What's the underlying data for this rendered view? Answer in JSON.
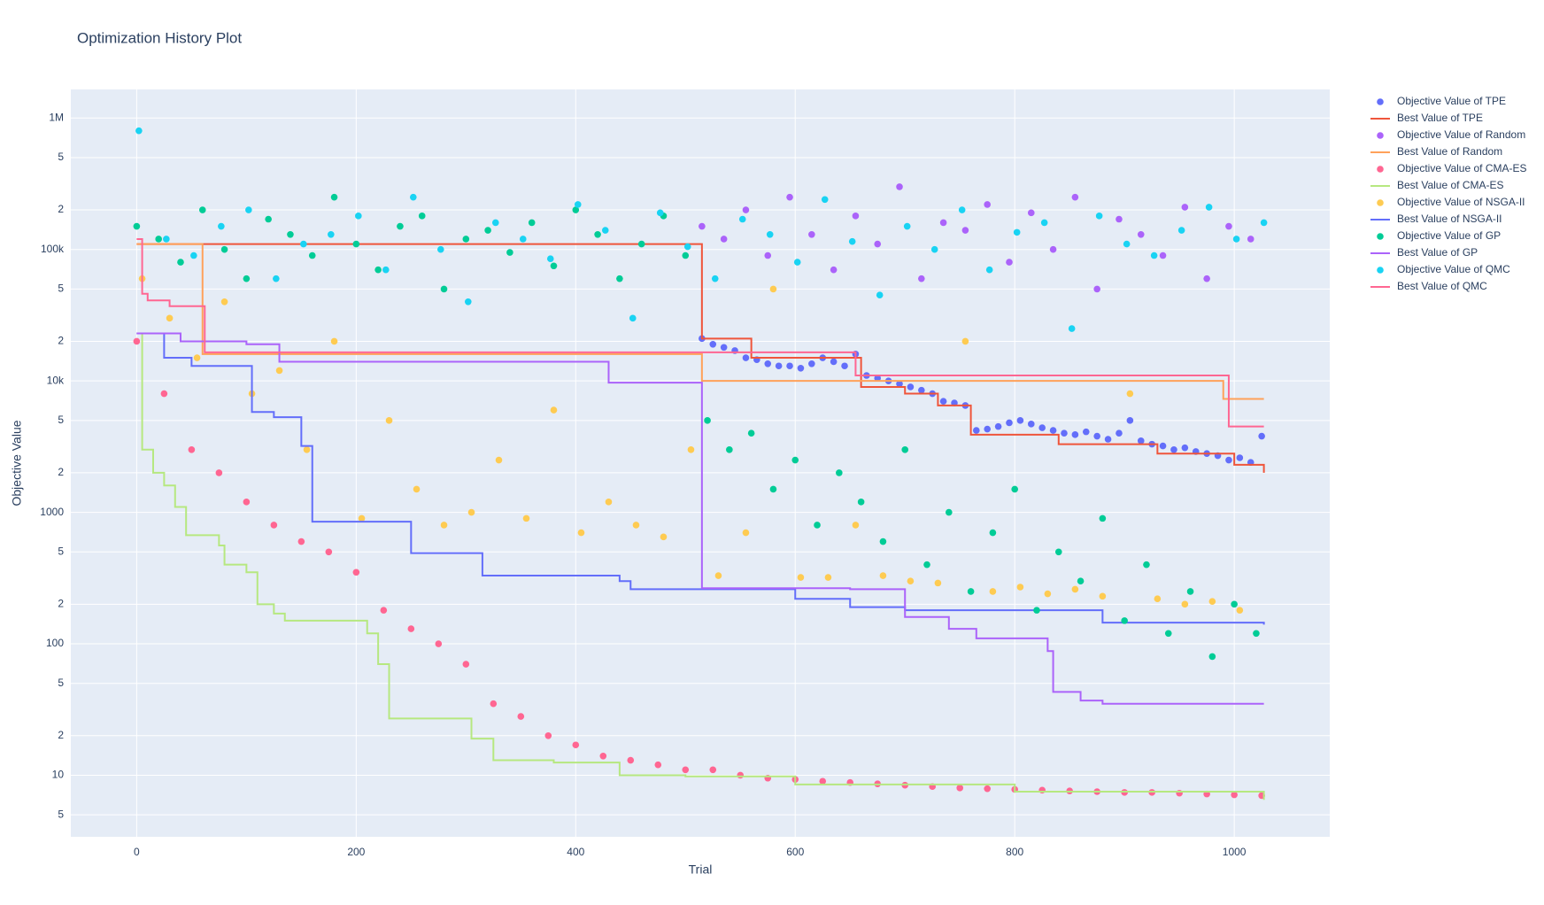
{
  "chart_data": {
    "type": "scatter",
    "title": "Optimization History Plot",
    "xlabel": "Trial",
    "ylabel": "Objective Value",
    "xlim": [
      -60,
      1087
    ],
    "ylim": [
      3.4,
      1650000
    ],
    "ylog": true,
    "grid": true,
    "legend": "right",
    "plot_background": "#e5ecf6",
    "xticks": [
      0,
      200,
      400,
      600,
      800,
      1000
    ],
    "yticks": [
      5,
      10,
      {
        "value": 20,
        "label": "2"
      },
      {
        "value": 50,
        "label": "5"
      },
      100,
      {
        "value": 200,
        "label": "2"
      },
      {
        "value": 500,
        "label": "5"
      },
      1000,
      {
        "value": 2000,
        "label": "2"
      },
      {
        "value": 5000,
        "label": "5"
      },
      {
        "value": 10000,
        "label": "10k"
      },
      {
        "value": 20000,
        "label": "2"
      },
      {
        "value": 50000,
        "label": "5"
      },
      {
        "value": 100000,
        "label": "100k"
      },
      {
        "value": 200000,
        "label": "2"
      },
      {
        "value": 500000,
        "label": "5"
      },
      {
        "value": 1000000,
        "label": "1M"
      }
    ],
    "series": [
      {
        "name": "Objective Value of TPE",
        "color": "#636efa",
        "mode": "markers",
        "x": [
          515,
          525,
          535,
          545,
          555,
          565,
          575,
          585,
          595,
          605,
          615,
          625,
          635,
          645,
          655,
          665,
          675,
          685,
          695,
          705,
          715,
          725,
          735,
          745,
          755,
          765,
          775,
          785,
          795,
          805,
          815,
          825,
          835,
          845,
          855,
          865,
          875,
          885,
          895,
          905,
          915,
          925,
          935,
          945,
          955,
          965,
          975,
          985,
          995,
          1005,
          1015,
          1025
        ],
        "values": [
          21000,
          19000,
          18000,
          17000,
          15000,
          14500,
          13500,
          13000,
          13000,
          12500,
          13500,
          15000,
          14000,
          13000,
          16000,
          11000,
          10500,
          10000,
          9500,
          9000,
          8500,
          8000,
          7000,
          6800,
          6500,
          4200,
          4300,
          4500,
          4800,
          5000,
          4700,
          4400,
          4200,
          4000,
          3900,
          4100,
          3800,
          3600,
          4000,
          5000,
          3500,
          3300,
          3200,
          3000,
          3100,
          2900,
          2800,
          2700,
          2500,
          2600,
          2400,
          3800
        ]
      },
      {
        "name": "Best Value of TPE",
        "color": "#ef553b",
        "mode": "lines",
        "line_shape": "hv",
        "x": [
          0,
          515,
          560,
          660,
          700,
          730,
          760,
          840,
          930,
          1000,
          1027
        ],
        "values": [
          110000,
          21000,
          15000,
          9000,
          8000,
          6500,
          3900,
          3300,
          2800,
          2300,
          2000
        ]
      },
      {
        "name": "Objective Value of Random",
        "color": "#ab63fa",
        "mode": "markers",
        "x": [
          515,
          535,
          555,
          575,
          595,
          615,
          635,
          655,
          675,
          695,
          715,
          735,
          755,
          775,
          795,
          815,
          835,
          855,
          875,
          895,
          915,
          935,
          955,
          975,
          995,
          1015
        ],
        "values": [
          150000,
          120000,
          200000,
          90000,
          250000,
          130000,
          70000,
          180000,
          110000,
          300000,
          60000,
          160000,
          140000,
          220000,
          80000,
          190000,
          100000,
          250000,
          50000,
          170000,
          130000,
          90000,
          210000,
          60000,
          150000,
          120000
        ]
      },
      {
        "name": "Best Value of Random",
        "color": "#ffa15a",
        "mode": "lines",
        "line_shape": "hv",
        "x": [
          0,
          60,
          515,
          990,
          1027
        ],
        "values": [
          110000,
          16000,
          10000,
          7300,
          7300
        ]
      },
      {
        "name": "Objective Value of CMA-ES",
        "color": "#ff6692",
        "mode": "markers",
        "x": [
          0,
          25,
          50,
          75,
          100,
          125,
          150,
          175,
          200,
          225,
          250,
          275,
          300,
          325,
          350,
          375,
          400,
          425,
          450,
          475,
          500,
          525,
          550,
          575,
          600,
          625,
          650,
          675,
          700,
          725,
          750,
          775,
          800,
          825,
          850,
          875,
          900,
          925,
          950,
          975,
          1000,
          1025
        ],
        "values": [
          20000,
          8000,
          3000,
          2000,
          1200,
          800,
          600,
          500,
          350,
          180,
          130,
          100,
          70,
          35,
          28,
          20,
          17,
          14,
          13,
          12,
          11,
          11,
          10,
          9.5,
          9.3,
          9,
          8.8,
          8.6,
          8.4,
          8.2,
          8,
          7.9,
          7.8,
          7.7,
          7.6,
          7.5,
          7.4,
          7.4,
          7.3,
          7.2,
          7.1,
          7
        ]
      },
      {
        "name": "Best Value of CMA-ES",
        "color": "#b6e880",
        "mode": "lines",
        "line_shape": "hv",
        "x": [
          0,
          5,
          15,
          25,
          35,
          45,
          75,
          80,
          100,
          110,
          125,
          135,
          200,
          210,
          220,
          230,
          305,
          325,
          380,
          440,
          500,
          600,
          800,
          1027
        ],
        "values": [
          23000,
          3000,
          2000,
          1600,
          1100,
          670,
          560,
          400,
          350,
          200,
          170,
          150,
          150,
          120,
          70,
          27,
          19,
          13,
          12.5,
          10,
          9.8,
          8.5,
          7.5,
          6.5
        ]
      },
      {
        "name": "Objective Value of NSGA-II",
        "color": "#fecb52",
        "mode": "markers",
        "x": [
          5,
          30,
          55,
          80,
          105,
          130,
          155,
          180,
          205,
          230,
          255,
          280,
          305,
          330,
          355,
          380,
          405,
          430,
          455,
          480,
          505,
          530,
          555,
          580,
          605,
          630,
          655,
          680,
          705,
          730,
          755,
          780,
          805,
          830,
          855,
          880,
          905,
          930,
          955,
          980,
          1005
        ],
        "values": [
          60000,
          30000,
          15000,
          40000,
          8000,
          12000,
          3000,
          20000,
          900,
          5000,
          1500,
          800,
          1000,
          2500,
          900,
          6000,
          700,
          1200,
          800,
          650,
          3000,
          330,
          700,
          50000,
          320,
          320,
          800,
          330,
          300,
          290,
          20000,
          250,
          270,
          240,
          260,
          230,
          8000,
          220,
          200,
          210,
          180
        ]
      },
      {
        "name": "Best Value of NSGA-II",
        "color": "#636efa",
        "mode": "lines",
        "line_shape": "hv",
        "x": [
          0,
          25,
          50,
          105,
          125,
          150,
          160,
          250,
          315,
          440,
          450,
          600,
          650,
          700,
          880,
          1027
        ],
        "values": [
          23000,
          15000,
          13000,
          5800,
          5300,
          3200,
          850,
          490,
          330,
          300,
          260,
          220,
          190,
          180,
          145,
          140
        ]
      },
      {
        "name": "Objective Value of GP",
        "color": "#00cc96",
        "mode": "markers",
        "x": [
          0,
          20,
          40,
          60,
          80,
          100,
          120,
          140,
          160,
          180,
          200,
          220,
          240,
          260,
          280,
          300,
          320,
          340,
          360,
          380,
          400,
          420,
          440,
          460,
          480,
          500,
          520,
          540,
          560,
          580,
          600,
          620,
          640,
          660,
          680,
          700,
          720,
          740,
          760,
          780,
          800,
          820,
          840,
          860,
          880,
          900,
          920,
          940,
          960,
          980,
          1000,
          1020
        ],
        "values": [
          150000,
          120000,
          80000,
          200000,
          100000,
          60000,
          170000,
          130000,
          90000,
          250000,
          110000,
          70000,
          150000,
          180000,
          50000,
          120000,
          140000,
          95000,
          160000,
          75000,
          200000,
          130000,
          60000,
          110000,
          180000,
          90000,
          5000,
          3000,
          4000,
          1500,
          2500,
          800,
          2000,
          1200,
          600,
          3000,
          400,
          1000,
          250,
          700,
          1500,
          180,
          500,
          300,
          900,
          150,
          400,
          120,
          250,
          80,
          200,
          120
        ]
      },
      {
        "name": "Best Value of GP",
        "color": "#ab63fa",
        "mode": "lines",
        "line_shape": "hv",
        "x": [
          0,
          40,
          100,
          130,
          430,
          515,
          650,
          700,
          740,
          765,
          830,
          835,
          860,
          880,
          1027
        ],
        "values": [
          23000,
          20000,
          19000,
          14000,
          9700,
          265,
          260,
          160,
          130,
          110,
          88,
          43,
          37,
          35,
          35
        ]
      },
      {
        "name": "Objective Value of QMC",
        "color": "#19d3f3",
        "mode": "markers",
        "x": [
          2,
          27,
          52,
          77,
          102,
          127,
          152,
          177,
          202,
          227,
          252,
          277,
          302,
          327,
          352,
          377,
          402,
          427,
          452,
          477,
          502,
          527,
          552,
          577,
          602,
          627,
          652,
          677,
          702,
          727,
          752,
          777,
          802,
          827,
          852,
          877,
          902,
          927,
          952,
          977,
          1002,
          1027
        ],
        "values": [
          800000,
          120000,
          90000,
          150000,
          200000,
          60000,
          110000,
          130000,
          180000,
          70000,
          250000,
          100000,
          40000,
          160000,
          120000,
          85000,
          220000,
          140000,
          30000,
          190000,
          105000,
          60000,
          170000,
          130000,
          80000,
          240000,
          115000,
          45000,
          150000,
          100000,
          200000,
          70000,
          135000,
          160000,
          25000,
          180000,
          110000,
          90000,
          140000,
          210000,
          120000,
          160000
        ]
      },
      {
        "name": "Best Value of QMC",
        "color": "#ff6692",
        "mode": "lines",
        "line_shape": "hv",
        "x": [
          0,
          5,
          10,
          30,
          62,
          655,
          995,
          1027
        ],
        "values": [
          120000,
          46000,
          41000,
          37000,
          16500,
          11000,
          4500,
          4500
        ]
      }
    ]
  }
}
